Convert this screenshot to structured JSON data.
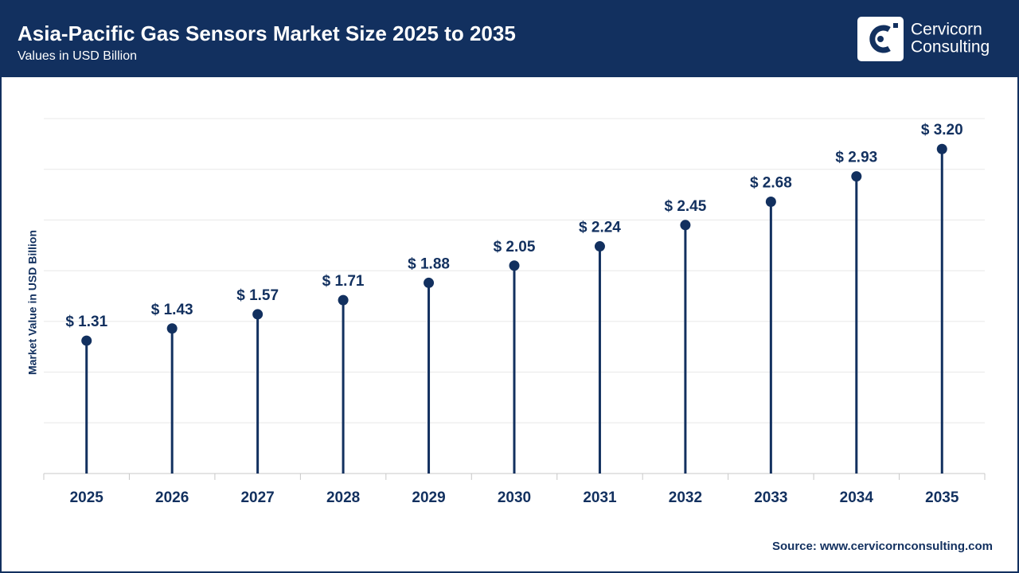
{
  "chart_data": {
    "type": "lollipop",
    "title": "Asia-Pacific Gas Sensors Market Size 2025 to 2035",
    "subtitle": "Values in USD Billion",
    "y_label": "Market Value in USD Billion",
    "categories": [
      "2025",
      "2026",
      "2027",
      "2028",
      "2029",
      "2030",
      "2031",
      "2032",
      "2033",
      "2034",
      "2035"
    ],
    "values": [
      1.31,
      1.43,
      1.57,
      1.71,
      1.88,
      2.05,
      2.24,
      2.45,
      2.68,
      2.93,
      3.2
    ],
    "value_labels": [
      "$ 1.31",
      "$ 1.43",
      "$ 1.57",
      "$ 1.71",
      "$ 1.88",
      "$ 2.05",
      "$ 2.24",
      "$ 2.45",
      "$ 2.68",
      "$ 2.93",
      "$ 3.20"
    ],
    "color": "#12305f",
    "ylim": [
      0,
      3.5
    ],
    "yticks": [
      0,
      0.5,
      1,
      1.5,
      2,
      2.5,
      3,
      3.5
    ],
    "grid": true,
    "source": "Source: www.cervicornconsulting.com"
  },
  "brand": {
    "lines": [
      "Cervicorn",
      "Consulting"
    ]
  }
}
